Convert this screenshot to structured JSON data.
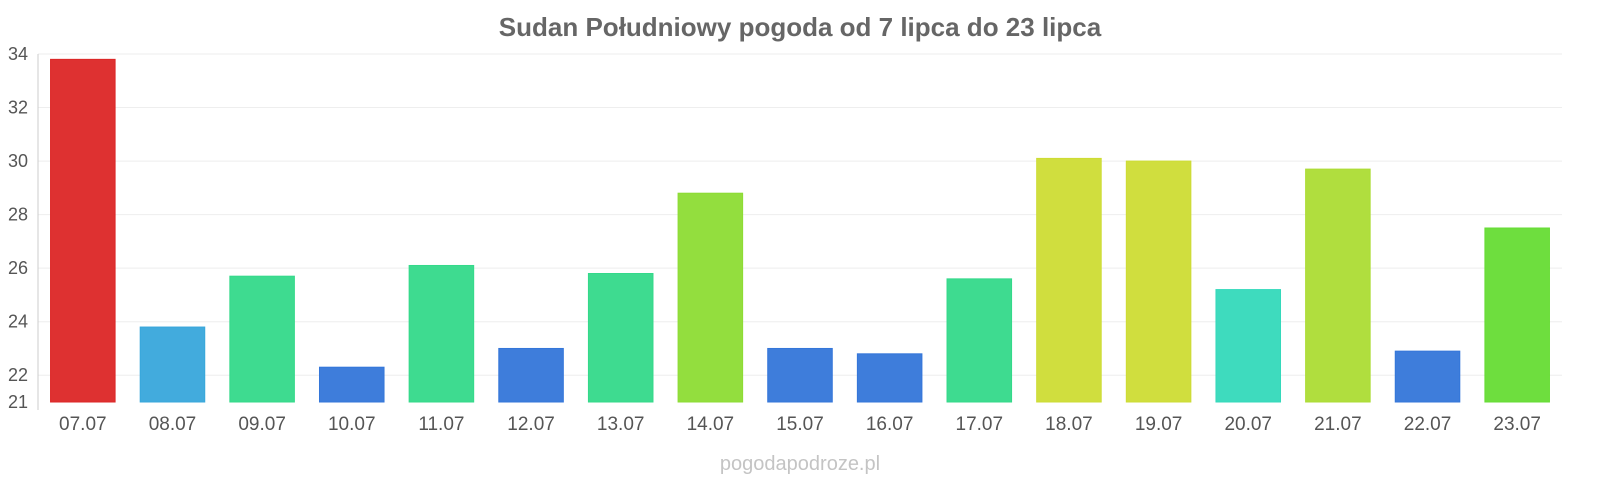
{
  "chart_data": {
    "type": "bar",
    "title": "Sudan Południowy pogoda od 7 lipca do 23 lipca",
    "xlabel": "",
    "ylabel": "",
    "ylim": [
      21,
      34
    ],
    "yticks": [
      21,
      22,
      24,
      26,
      28,
      30,
      32,
      34
    ],
    "grid": true,
    "categories": [
      "07.07",
      "08.07",
      "09.07",
      "10.07",
      "11.07",
      "12.07",
      "13.07",
      "14.07",
      "15.07",
      "16.07",
      "17.07",
      "18.07",
      "19.07",
      "20.07",
      "21.07",
      "22.07",
      "23.07"
    ],
    "values": [
      33.8,
      23.8,
      25.7,
      22.3,
      26.1,
      23.0,
      25.8,
      28.8,
      23.0,
      22.8,
      25.6,
      30.1,
      30.0,
      25.2,
      29.7,
      22.9,
      27.5
    ],
    "colors": [
      "#dc2626",
      "#38a7db",
      "#34d98a",
      "#3476d9",
      "#34d98a",
      "#3476d9",
      "#34d98a",
      "#8ddc34",
      "#3476d9",
      "#3476d9",
      "#34d98a",
      "#cddc34",
      "#cddc34",
      "#34d9bb",
      "#acdc34",
      "#3476d9",
      "#66dc34"
    ]
  },
  "watermark": "pogodapodroze.pl"
}
